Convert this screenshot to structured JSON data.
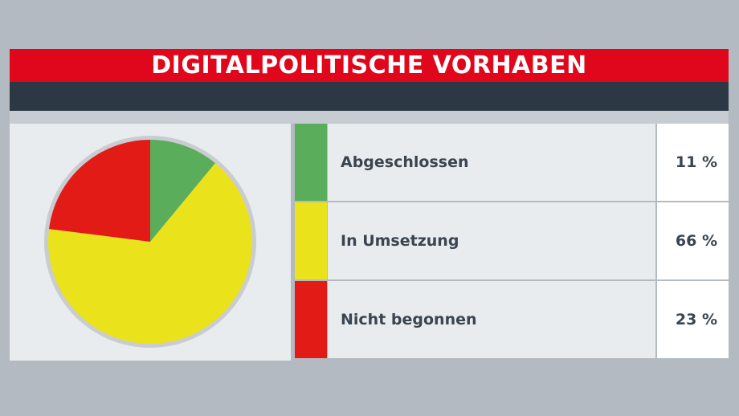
{
  "header": {
    "title": "DIGITALPOLITISCHE VORHABEN"
  },
  "colors": {
    "title_bg": "#e0061c",
    "subtitle_bg": "#2c3945",
    "background": "#b3bac2",
    "panel_bg": "#e9ecef",
    "pie_rim": "#c9cdd1"
  },
  "chart_data": {
    "type": "pie",
    "title": "DIGITALPOLITISCHE VORHABEN",
    "categories": [
      "Abgeschlossen",
      "In Umsetzung",
      "Nicht begonnen"
    ],
    "values": [
      11,
      66,
      23
    ],
    "value_labels": [
      "11 %",
      "66 %",
      "23 %"
    ],
    "colors": [
      "#5aad5a",
      "#eae21a",
      "#e31b17"
    ],
    "start_angle_deg": 0,
    "direction": "clockwise"
  }
}
